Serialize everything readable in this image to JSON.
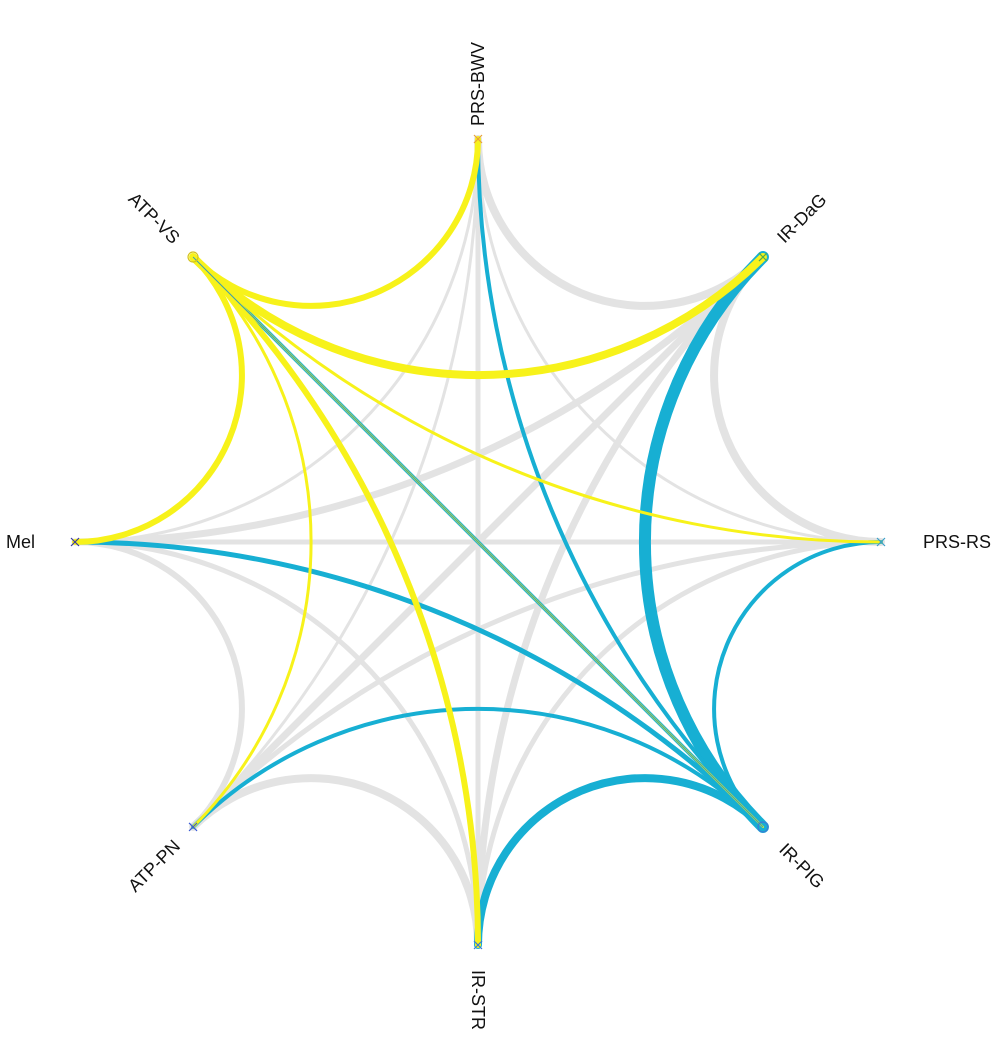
{
  "nodes": [
    {
      "id": "PRS-BWV",
      "label": "PRS-BWV",
      "marker": "cross",
      "color": "#e8a23a"
    },
    {
      "id": "IR-DaG",
      "label": "IR-DaG",
      "marker": "cross",
      "color": "#4caf50"
    },
    {
      "id": "PRS-RS",
      "label": "PRS-RS",
      "marker": "cross",
      "color": "#3aa0c8"
    },
    {
      "id": "IR-PIG",
      "label": "IR-PIG",
      "marker": "circle",
      "color": "#3a7bd5"
    },
    {
      "id": "IR-STR",
      "label": "IR-STR",
      "marker": "cross",
      "color": "#3a7bd5"
    },
    {
      "id": "ATP-PN",
      "label": "ATP-PN",
      "marker": "cross",
      "color": "#3a5bd5"
    },
    {
      "id": "Mel",
      "label": "Mel",
      "marker": "cross",
      "color": "#3a3aa0"
    },
    {
      "id": "ATP-VS",
      "label": "ATP-VS",
      "marker": "circle",
      "color": "#d4c21a"
    }
  ],
  "colors": {
    "yellow": "#f7f21a",
    "blue": "#17afd3",
    "gray": "#e3e3e3"
  },
  "edges": [
    {
      "from": "PRS-BWV",
      "to": "IR-DaG",
      "weight": 8,
      "color": "gray"
    },
    {
      "from": "PRS-BWV",
      "to": "PRS-RS",
      "weight": 3,
      "color": "gray"
    },
    {
      "from": "PRS-BWV",
      "to": "IR-STR",
      "weight": 5,
      "color": "gray"
    },
    {
      "from": "PRS-BWV",
      "to": "ATP-PN",
      "weight": 3,
      "color": "gray"
    },
    {
      "from": "PRS-BWV",
      "to": "Mel",
      "weight": 3,
      "color": "gray"
    },
    {
      "from": "IR-DaG",
      "to": "PRS-RS",
      "weight": 8,
      "color": "gray"
    },
    {
      "from": "IR-DaG",
      "to": "IR-STR",
      "weight": 7,
      "color": "gray"
    },
    {
      "from": "IR-DaG",
      "to": "ATP-PN",
      "weight": 7,
      "color": "gray"
    },
    {
      "from": "IR-DaG",
      "to": "Mel",
      "weight": 7,
      "color": "gray"
    },
    {
      "from": "PRS-RS",
      "to": "IR-STR",
      "weight": 5,
      "color": "gray"
    },
    {
      "from": "PRS-RS",
      "to": "ATP-PN",
      "weight": 5,
      "color": "gray"
    },
    {
      "from": "PRS-RS",
      "to": "Mel",
      "weight": 5,
      "color": "gray"
    },
    {
      "from": "IR-PIG",
      "to": "ATP-PN",
      "weight": 3,
      "color": "gray"
    },
    {
      "from": "IR-STR",
      "to": "ATP-PN",
      "weight": 8,
      "color": "gray"
    },
    {
      "from": "IR-STR",
      "to": "Mel",
      "weight": 5,
      "color": "gray"
    },
    {
      "from": "ATP-PN",
      "to": "Mel",
      "weight": 6,
      "color": "gray"
    },
    {
      "from": "IR-STR",
      "to": "ATP-VS",
      "weight": 3,
      "color": "gray"
    },
    {
      "from": "IR-DaG",
      "to": "IR-PIG",
      "weight": 12,
      "color": "blue"
    },
    {
      "from": "PRS-BWV",
      "to": "IR-PIG",
      "weight": 4,
      "color": "blue"
    },
    {
      "from": "PRS-RS",
      "to": "IR-PIG",
      "weight": 4,
      "color": "blue"
    },
    {
      "from": "IR-PIG",
      "to": "IR-STR",
      "weight": 8,
      "color": "blue"
    },
    {
      "from": "IR-PIG",
      "to": "Mel",
      "weight": 5,
      "color": "blue"
    },
    {
      "from": "IR-PIG",
      "to": "ATP-PN",
      "weight": 4,
      "color": "blue"
    },
    {
      "from": "IR-PIG",
      "to": "ATP-VS",
      "weight": 4,
      "color": "blue"
    },
    {
      "from": "ATP-VS",
      "to": "PRS-BWV",
      "weight": 6,
      "color": "yellow"
    },
    {
      "from": "ATP-VS",
      "to": "IR-DaG",
      "weight": 8,
      "color": "yellow"
    },
    {
      "from": "ATP-VS",
      "to": "PRS-RS",
      "weight": 3,
      "color": "yellow"
    },
    {
      "from": "ATP-VS",
      "to": "IR-PIG",
      "weight": 2,
      "color": "yellow"
    },
    {
      "from": "ATP-VS",
      "to": "IR-STR",
      "weight": 6,
      "color": "yellow"
    },
    {
      "from": "ATP-VS",
      "to": "ATP-PN",
      "weight": 3,
      "color": "yellow"
    },
    {
      "from": "ATP-VS",
      "to": "Mel",
      "weight": 6,
      "color": "yellow"
    }
  ]
}
